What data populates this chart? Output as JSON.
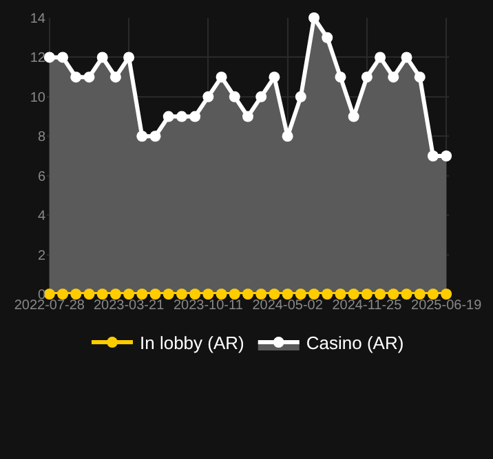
{
  "chart_data": {
    "type": "area",
    "categories": [
      "2022-07-28",
      null,
      null,
      null,
      null,
      null,
      "2023-03-21",
      null,
      null,
      null,
      null,
      null,
      "2023-10-11",
      null,
      null,
      null,
      null,
      null,
      "2024-05-02",
      null,
      null,
      null,
      null,
      null,
      "2024-11-25",
      null,
      null,
      null,
      null,
      null,
      "2025-06-19"
    ],
    "series": [
      {
        "name": "In lobby (AR)",
        "color": "#ffcc00",
        "type": "line",
        "values": [
          0,
          0,
          0,
          0,
          0,
          0,
          0,
          0,
          0,
          0,
          0,
          0,
          0,
          0,
          0,
          0,
          0,
          0,
          0,
          0,
          0,
          0,
          0,
          0,
          0,
          0,
          0,
          0,
          0,
          0,
          0
        ]
      },
      {
        "name": "Casino (AR)",
        "color": "#ffffff",
        "values": [
          12,
          12,
          11,
          11,
          12,
          11,
          12,
          8,
          8,
          9,
          9,
          9,
          10,
          11,
          10,
          9,
          10,
          11,
          8,
          10,
          14,
          13,
          11,
          9,
          11,
          12,
          11,
          12,
          11,
          7,
          7
        ]
      }
    ],
    "ylim": [
      0,
      14
    ],
    "yticks": [
      0,
      2,
      4,
      6,
      8,
      10,
      12,
      14
    ],
    "grid": true,
    "legend": "bottom",
    "marker": "circle",
    "line_style": "solid"
  }
}
